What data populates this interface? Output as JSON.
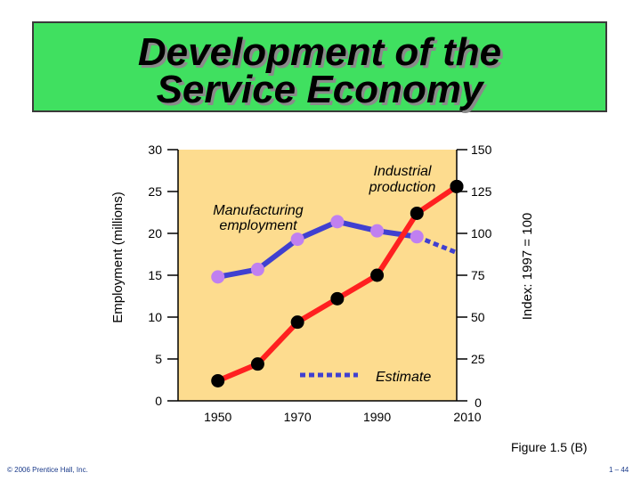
{
  "page": {
    "title_line1": "Development of the",
    "title_line2": "Service Economy",
    "figure_caption": "Figure 1.5 (B)",
    "copyright": "© 2006 Prentice Hall, Inc.",
    "page_number": "1 – 44"
  },
  "colors": {
    "title_bg": "#40e060",
    "plot_bg": "#fddc8f",
    "manufacturing_line": "#4040d0",
    "manufacturing_marker": "#c080f0",
    "industrial_line": "#ff2020",
    "industrial_marker": "#000000"
  },
  "chart_data": {
    "type": "line",
    "title": "",
    "xlabel": "",
    "ylabel": "Employment (millions)",
    "y2label": "Index: 1997 = 100",
    "xlim": [
      1940,
      2010
    ],
    "ylim": [
      0,
      30
    ],
    "y2lim": [
      0,
      150
    ],
    "x_ticks": [
      1950,
      1970,
      1990,
      2010
    ],
    "y_ticks": [
      0,
      5,
      10,
      15,
      20,
      25,
      30
    ],
    "y2_ticks": [
      0,
      25,
      50,
      75,
      100,
      125,
      150
    ],
    "grid": false,
    "series": [
      {
        "name": "Manufacturing employment",
        "axis": "left",
        "x": [
          1950,
          1960,
          1970,
          1980,
          1990,
          2000
        ],
        "values": [
          14.8,
          15.7,
          19.3,
          21.4,
          20.3,
          19.6
        ],
        "estimate": {
          "x": [
            2000,
            2010
          ],
          "values": [
            19.6,
            17.7
          ]
        }
      },
      {
        "name": "Industrial production",
        "axis": "right",
        "x": [
          1950,
          1960,
          1970,
          1980,
          1990,
          2000,
          2010
        ],
        "values": [
          12,
          22,
          47,
          61,
          75,
          112,
          128
        ],
        "estimate": {
          "x": [
            2000,
            2010
          ],
          "values": [
            112,
            128
          ]
        }
      }
    ],
    "legend": {
      "estimate_label": "Estimate",
      "placement": "bottom-right"
    }
  }
}
